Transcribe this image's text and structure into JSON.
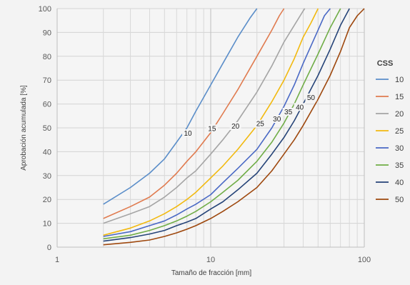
{
  "chart_data": {
    "type": "line",
    "title": "",
    "xlabel": "Tamaño de fracción [mm]",
    "ylabel": "Aprobación acumulada [%]",
    "x_scale": "log",
    "xlim": [
      1,
      100
    ],
    "ylim": [
      0,
      100
    ],
    "x_ticks": [
      "1",
      "10",
      "100"
    ],
    "y_ticks": [
      "0",
      "10",
      "20",
      "30",
      "40",
      "50",
      "60",
      "70",
      "80",
      "90",
      "100"
    ],
    "grid": true,
    "legend_title": "CSS",
    "legend_position": "right",
    "series": [
      {
        "name": "10",
        "color": "#5b8ec9",
        "label_at": [
          7.1,
          47
        ],
        "points": [
          [
            2,
            18
          ],
          [
            3,
            25
          ],
          [
            4,
            31
          ],
          [
            5,
            37
          ],
          [
            6,
            44
          ],
          [
            7,
            50
          ],
          [
            8,
            57
          ],
          [
            10,
            68
          ],
          [
            12,
            77
          ],
          [
            15,
            88
          ],
          [
            18,
            96
          ],
          [
            20,
            100
          ]
        ]
      },
      {
        "name": "15",
        "color": "#e07b4f",
        "label_at": [
          10.2,
          49
        ],
        "points": [
          [
            2,
            12
          ],
          [
            3,
            17
          ],
          [
            4,
            21
          ],
          [
            5,
            26
          ],
          [
            6,
            31
          ],
          [
            7,
            36
          ],
          [
            8,
            40
          ],
          [
            10,
            48
          ],
          [
            12,
            56
          ],
          [
            15,
            66
          ],
          [
            20,
            80
          ],
          [
            25,
            91
          ],
          [
            28,
            97
          ],
          [
            30,
            100
          ]
        ]
      },
      {
        "name": "20",
        "color": "#a5a5a5",
        "label_at": [
          14.5,
          50
        ],
        "points": [
          [
            2,
            10
          ],
          [
            3,
            14
          ],
          [
            4,
            17
          ],
          [
            5,
            21
          ],
          [
            6,
            25
          ],
          [
            7,
            29
          ],
          [
            8,
            32
          ],
          [
            10,
            39
          ],
          [
            12,
            45
          ],
          [
            15,
            53
          ],
          [
            20,
            65
          ],
          [
            25,
            76
          ],
          [
            30,
            86
          ],
          [
            35,
            93
          ],
          [
            40,
            99
          ],
          [
            41,
            100
          ]
        ]
      },
      {
        "name": "25",
        "color": "#f2b90f",
        "label_at": [
          21,
          51
        ],
        "points": [
          [
            2,
            5
          ],
          [
            3,
            8
          ],
          [
            4,
            11
          ],
          [
            5,
            14
          ],
          [
            6,
            17
          ],
          [
            7,
            20
          ],
          [
            8,
            23
          ],
          [
            10,
            29
          ],
          [
            12,
            34
          ],
          [
            15,
            41
          ],
          [
            20,
            51
          ],
          [
            25,
            61
          ],
          [
            30,
            70
          ],
          [
            35,
            79
          ],
          [
            40,
            88
          ],
          [
            45,
            94
          ],
          [
            50,
            100
          ]
        ]
      },
      {
        "name": "30",
        "color": "#4a69c5",
        "label_at": [
          27,
          53
        ],
        "points": [
          [
            2,
            4.5
          ],
          [
            3,
            6.5
          ],
          [
            4,
            9
          ],
          [
            5,
            11
          ],
          [
            6,
            13.5
          ],
          [
            7,
            16
          ],
          [
            8,
            18
          ],
          [
            10,
            22
          ],
          [
            12,
            27
          ],
          [
            15,
            33
          ],
          [
            20,
            41
          ],
          [
            25,
            50
          ],
          [
            30,
            59
          ],
          [
            35,
            68
          ],
          [
            40,
            77
          ],
          [
            50,
            91
          ],
          [
            55,
            97
          ],
          [
            60,
            100
          ]
        ]
      },
      {
        "name": "35",
        "color": "#70ad47",
        "label_at": [
          32,
          56
        ],
        "points": [
          [
            2,
            3.5
          ],
          [
            3,
            5
          ],
          [
            4,
            7
          ],
          [
            5,
            9
          ],
          [
            6,
            11
          ],
          [
            7,
            13
          ],
          [
            8,
            15
          ],
          [
            10,
            19
          ],
          [
            12,
            23
          ],
          [
            15,
            28
          ],
          [
            20,
            36
          ],
          [
            25,
            44
          ],
          [
            30,
            52
          ],
          [
            35,
            60
          ],
          [
            40,
            68
          ],
          [
            50,
            81
          ],
          [
            60,
            92
          ],
          [
            70,
            100
          ]
        ]
      },
      {
        "name": "40",
        "color": "#264478",
        "label_at": [
          38,
          58
        ],
        "points": [
          [
            2,
            2.5
          ],
          [
            3,
            4
          ],
          [
            4,
            5.5
          ],
          [
            5,
            7
          ],
          [
            6,
            9
          ],
          [
            7,
            10.5
          ],
          [
            8,
            12
          ],
          [
            10,
            16
          ],
          [
            12,
            19
          ],
          [
            15,
            24
          ],
          [
            20,
            31
          ],
          [
            25,
            39
          ],
          [
            30,
            46
          ],
          [
            35,
            53
          ],
          [
            40,
            60
          ],
          [
            50,
            72
          ],
          [
            60,
            83
          ],
          [
            70,
            93
          ],
          [
            80,
            100
          ]
        ]
      },
      {
        "name": "50",
        "color": "#9e480e",
        "label_at": [
          45,
          62
        ],
        "points": [
          [
            2,
            1
          ],
          [
            3,
            2
          ],
          [
            4,
            3
          ],
          [
            5,
            4.5
          ],
          [
            6,
            6
          ],
          [
            7,
            7.5
          ],
          [
            8,
            9
          ],
          [
            10,
            12
          ],
          [
            12,
            15
          ],
          [
            15,
            19
          ],
          [
            20,
            25
          ],
          [
            25,
            32
          ],
          [
            30,
            39
          ],
          [
            35,
            45
          ],
          [
            40,
            51
          ],
          [
            50,
            62
          ],
          [
            60,
            72
          ],
          [
            70,
            82
          ],
          [
            80,
            92
          ],
          [
            90,
            97
          ],
          [
            100,
            100
          ]
        ]
      }
    ]
  }
}
